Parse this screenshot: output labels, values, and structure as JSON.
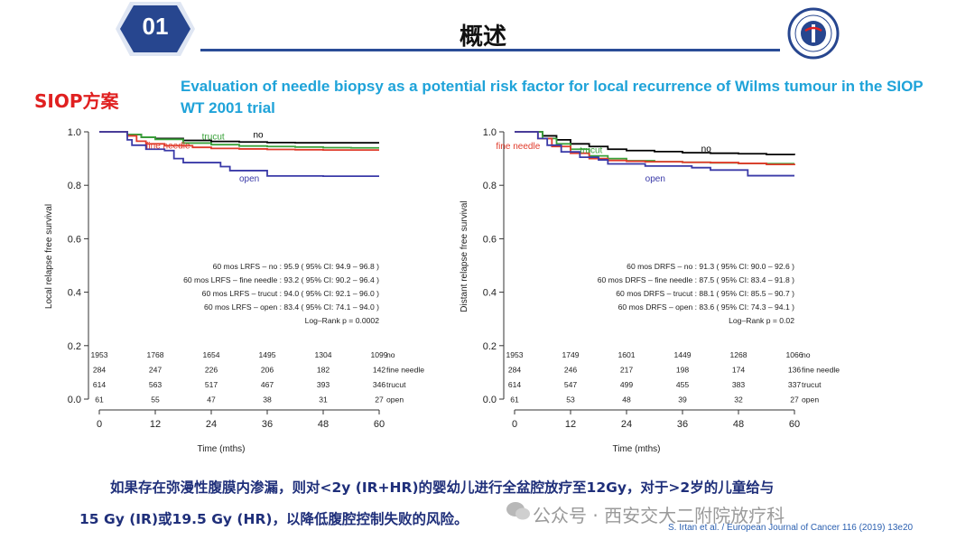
{
  "header": {
    "badge_number": "01",
    "title": "概述"
  },
  "siop_label": "SIOP方案",
  "paper_title": "Evaluation of needle biopsy as a potential risk factor for local recurrence of Wilms tumour in the SIOP WT 2001 trial",
  "chart_data": [
    {
      "type": "line",
      "ylabel": "Local relapse free survival",
      "xlabel": "Time (mths)",
      "xlim": [
        0,
        60
      ],
      "ylim": [
        0,
        1
      ],
      "x_ticks": [
        "0",
        "12",
        "24",
        "36",
        "48",
        "60"
      ],
      "y_ticks": [
        "0.0",
        "0.2",
        "0.4",
        "0.6",
        "0.8",
        "1.0"
      ],
      "series": [
        {
          "name": "no",
          "color": "#000000",
          "x": [
            0,
            6,
            9,
            12,
            18,
            24,
            30,
            36,
            42,
            48,
            54,
            60
          ],
          "y": [
            1.0,
            0.99,
            0.98,
            0.975,
            0.968,
            0.964,
            0.962,
            0.96,
            0.959,
            0.959,
            0.959,
            0.959
          ]
        },
        {
          "name": "trucut",
          "color": "#3aa23a",
          "x": [
            0,
            6,
            9,
            12,
            18,
            24,
            30,
            36,
            42,
            48,
            54,
            60
          ],
          "y": [
            1.0,
            0.99,
            0.98,
            0.972,
            0.958,
            0.952,
            0.947,
            0.945,
            0.943,
            0.941,
            0.94,
            0.94
          ]
        },
        {
          "name": "fine needle",
          "color": "#e03a2a",
          "x": [
            0,
            6,
            8,
            10,
            14,
            20,
            24,
            30,
            36,
            42,
            48,
            54,
            60
          ],
          "y": [
            1.0,
            0.985,
            0.965,
            0.955,
            0.948,
            0.942,
            0.938,
            0.936,
            0.934,
            0.933,
            0.932,
            0.932,
            0.932
          ]
        },
        {
          "name": "open",
          "color": "#3a3aa8",
          "x": [
            0,
            6,
            7,
            10,
            14,
            16,
            18,
            22,
            26,
            28,
            34,
            36,
            44,
            48,
            60
          ],
          "y": [
            1.0,
            0.97,
            0.95,
            0.935,
            0.93,
            0.9,
            0.885,
            0.885,
            0.87,
            0.855,
            0.855,
            0.835,
            0.835,
            0.834,
            0.834
          ]
        }
      ],
      "annotations": [
        "60 mos LRFS  – no : 95.9 ( 95% CI: 94.9 – 96.8 )",
        "60 mos LRFS  – fine needle : 93.2 ( 95% CI: 90.2 – 96.4 )",
        "60 mos LRFS  – trucut : 94.0 ( 95% CI: 92.1 – 96.0 )",
        "60 mos LRFS  – open : 83.4 ( 95% CI: 74.1 – 94.0 )",
        "Log–Rank p = 0.0002"
      ],
      "risk_table": {
        "rows": [
          {
            "label": "no",
            "values": [
              "1953",
              "1768",
              "1654",
              "1495",
              "1304",
              "1099"
            ]
          },
          {
            "label": "fine needle",
            "values": [
              "284",
              "247",
              "226",
              "206",
              "182",
              "142"
            ]
          },
          {
            "label": "trucut",
            "values": [
              "614",
              "563",
              "517",
              "467",
              "393",
              "346"
            ]
          },
          {
            "label": "open",
            "values": [
              "61",
              "55",
              "47",
              "38",
              "31",
              "27"
            ]
          }
        ]
      }
    },
    {
      "type": "line",
      "ylabel": "Distant relapse free survival",
      "xlabel": "Time (mths)",
      "xlim": [
        0,
        60
      ],
      "ylim": [
        0,
        1
      ],
      "x_ticks": [
        "0",
        "12",
        "24",
        "36",
        "48",
        "60"
      ],
      "y_ticks": [
        "0.0",
        "0.2",
        "0.4",
        "0.6",
        "0.8",
        "1.0"
      ],
      "series": [
        {
          "name": "no",
          "color": "#000000",
          "x": [
            0,
            6,
            9,
            12,
            16,
            20,
            24,
            30,
            36,
            42,
            48,
            54,
            60
          ],
          "y": [
            1.0,
            0.985,
            0.97,
            0.955,
            0.945,
            0.935,
            0.93,
            0.926,
            0.922,
            0.92,
            0.918,
            0.915,
            0.913
          ]
        },
        {
          "name": "trucut",
          "color": "#3aa23a",
          "x": [
            0,
            6,
            9,
            12,
            16,
            20,
            24,
            30,
            36,
            42,
            48,
            54,
            60
          ],
          "y": [
            1.0,
            0.975,
            0.955,
            0.935,
            0.91,
            0.9,
            0.892,
            0.888,
            0.886,
            0.884,
            0.882,
            0.881,
            0.881
          ]
        },
        {
          "name": "fine needle",
          "color": "#e03a2a",
          "x": [
            0,
            5,
            8,
            12,
            16,
            20,
            24,
            28,
            36,
            42,
            48,
            54,
            60
          ],
          "y": [
            1.0,
            0.975,
            0.945,
            0.92,
            0.9,
            0.893,
            0.89,
            0.888,
            0.886,
            0.885,
            0.882,
            0.878,
            0.875
          ]
        },
        {
          "name": "open",
          "color": "#3a3aa8",
          "x": [
            0,
            5,
            7,
            10,
            14,
            18,
            20,
            26,
            28,
            34,
            38,
            42,
            50,
            60
          ],
          "y": [
            1.0,
            0.975,
            0.95,
            0.925,
            0.905,
            0.895,
            0.88,
            0.88,
            0.872,
            0.872,
            0.866,
            0.857,
            0.836,
            0.836
          ]
        }
      ],
      "annotations": [
        "60 mos DRFS  – no : 91.3 ( 95% CI: 90.0 – 92.6 )",
        "60 mos DRFS  – fine needle : 87.5 ( 95% CI: 83.4 – 91.8 )",
        "60 mos DRFS  – trucut : 88.1 ( 95% CI: 85.5 – 90.7 )",
        "60 mos DRFS  – open : 83.6 ( 95% CI: 74.3 – 94.1 )",
        "Log–Rank p = 0.02"
      ],
      "risk_table": {
        "rows": [
          {
            "label": "no",
            "values": [
              "1953",
              "1749",
              "1601",
              "1449",
              "1268",
              "1066"
            ]
          },
          {
            "label": "fine needle",
            "values": [
              "284",
              "246",
              "217",
              "198",
              "174",
              "136"
            ]
          },
          {
            "label": "trucut",
            "values": [
              "614",
              "547",
              "499",
              "455",
              "383",
              "337"
            ]
          },
          {
            "label": "open",
            "values": [
              "61",
              "53",
              "48",
              "39",
              "32",
              "27"
            ]
          }
        ]
      }
    }
  ],
  "note": {
    "line1": "如果存在弥漫性腹膜内渗漏，则对<2y (IR+HR)的婴幼儿进行全盆腔放疗至12Gy，对于>2岁的儿童给与",
    "line2": "15 Gy (IR)或19.5 Gy (HR)，以降低腹腔控制失败的风险。"
  },
  "watermark": "公众号 · 西安交大二附院放疗科",
  "citation": "S. Irtan et al. / European Journal of Cancer 116 (2019) 13e20",
  "colors": {
    "accent_blue": "#2a4c97",
    "title_cyan": "#1fa3d9",
    "siop_red": "#e02020"
  }
}
